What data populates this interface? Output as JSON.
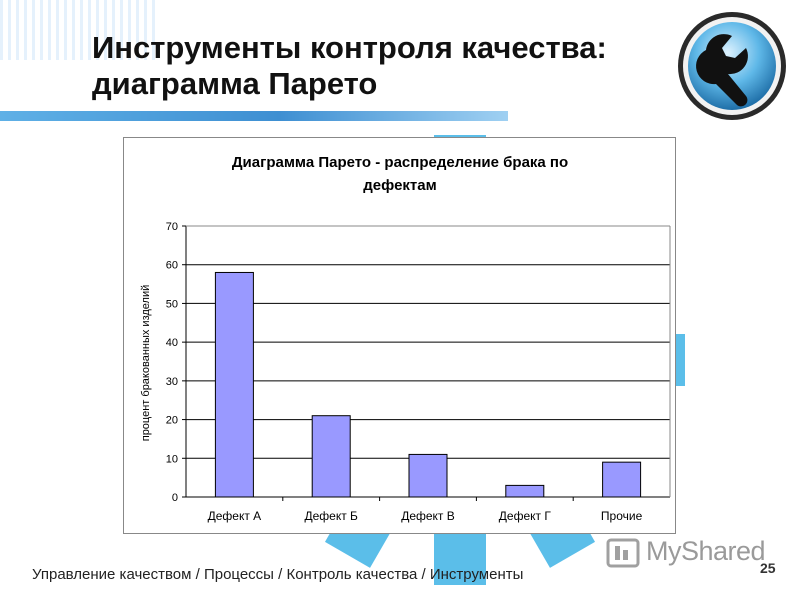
{
  "slide": {
    "title_line1": "Инструменты контроля качества:",
    "title_line2": "диаграмма Парето",
    "footer": "Управление качеством / Процессы / Контроль качества / Инструменты",
    "page_number": "25",
    "watermark": "MyShared"
  },
  "colors": {
    "bar_fill": "#9999ff",
    "bar_stroke": "#000000",
    "gear": "#3fb3e6",
    "title_bar": "#3e8fd2"
  },
  "chart_data": {
    "type": "bar",
    "title_line1": "Диаграмма Парето - распределение брака по",
    "title_line2": "дефектам",
    "ylabel": "процент бракованных изделий",
    "xlabel": "",
    "categories": [
      "Дефект А",
      "Дефект Б",
      "Дефект В",
      "Дефект Г",
      "Прочие"
    ],
    "values": [
      58,
      21,
      11,
      3,
      9
    ],
    "ylim": [
      0,
      70
    ],
    "yticks": [
      0,
      10,
      20,
      30,
      40,
      50,
      60,
      70
    ],
    "grid": true,
    "legend": "none"
  }
}
